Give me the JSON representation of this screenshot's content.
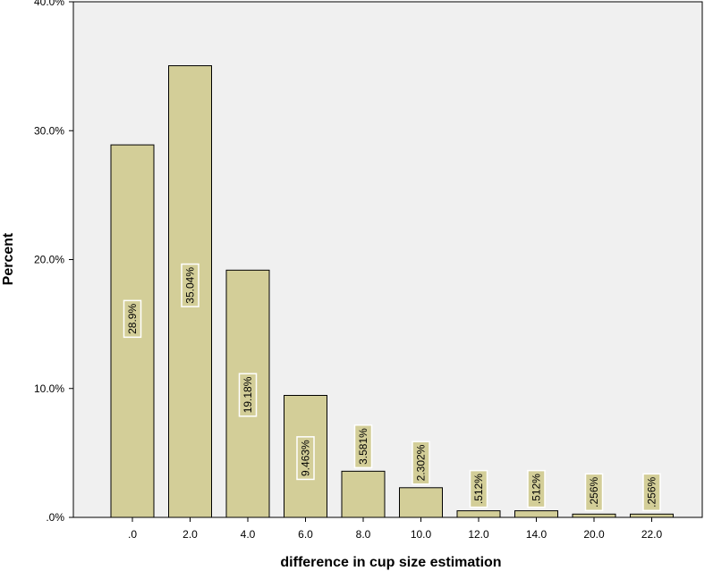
{
  "chart_data": {
    "type": "bar",
    "title": "",
    "xlabel": "difference in cup size estimation",
    "ylabel": "Percent",
    "categories": [
      ".0",
      "2.0",
      "4.0",
      "6.0",
      "8.0",
      "10.0",
      "12.0",
      "14.0",
      "20.0",
      "22.0"
    ],
    "values": [
      28.9,
      35.04,
      19.18,
      9.463,
      3.581,
      2.302,
      0.512,
      0.512,
      0.256,
      0.256
    ],
    "data_labels": [
      "28.9%",
      "35.04%",
      "19.18%",
      "9.463%",
      "3.581%",
      "2.302%",
      ".512%",
      ".512%",
      ".256%",
      ".256%"
    ],
    "yticks": [
      0,
      10,
      20,
      30,
      40
    ],
    "ytick_labels": [
      ".0%",
      "10.0%",
      "20.0%",
      "30.0%",
      "40.0%"
    ],
    "ylim": [
      0,
      40
    ],
    "grid": false,
    "colors": {
      "plot_background": "#f0f0f0",
      "bar_fill": "#d3ce98",
      "bar_stroke": "#000000",
      "label_background": "#d3ce98",
      "label_border": "#ffffff"
    }
  }
}
